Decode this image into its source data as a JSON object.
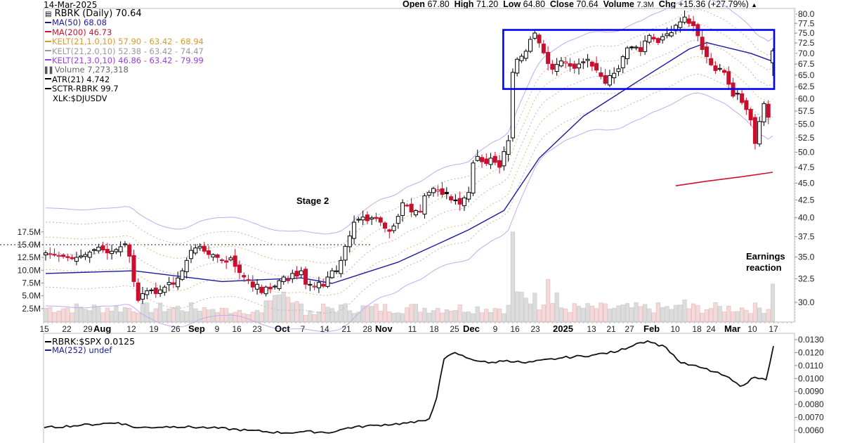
{
  "header": {
    "date": "14-Mar-2025",
    "open_label": "Open",
    "open": "67.80",
    "high_label": "High",
    "high": "71.20",
    "low_label": "Low",
    "low": "64.80",
    "close_label": "Close",
    "close": "70.64",
    "volume_label": "Volume",
    "volume": "7.3M",
    "chg_label": "Chg",
    "chg": "+15.36 (+27.79%)",
    "chg_icon": "up-triangle-icon"
  },
  "legend": {
    "title": "RBRK (Daily) 70.64",
    "items": [
      {
        "label": "MA(50) 68.08",
        "color": "#1a1aa0"
      },
      {
        "label": "MA(200) 46.73",
        "color": "#d0102e"
      },
      {
        "label": "KELT(21,1.0,10) 57.90 - 63.42 - 68.94",
        "color": "#d99a2b"
      },
      {
        "label": "KELT(21,2.0,10) 52.38 - 63.42 - 74.47",
        "color": "#999999"
      },
      {
        "label": "KELT(21,3.0,10) 46.86 - 63.42 - 79.99",
        "color": "#9b40e0"
      },
      {
        "label": "Volume 7,273,318",
        "color": "#777777",
        "icon": "volume-bars-icon"
      },
      {
        "label": "ATR(21) 4.742",
        "color": "#000000"
      },
      {
        "label": "SCTR-RBRK 99.7",
        "color": "#000000"
      },
      {
        "label": "XLK:$DJUSDV",
        "color": "#000000",
        "no_swatch": true
      }
    ]
  },
  "lower_legend": {
    "items": [
      {
        "label": "RBRK:$SPX 0.0125",
        "color": "#000000"
      },
      {
        "label": "MA(252) undef",
        "color": "#1a1aa0"
      }
    ]
  },
  "annotations": {
    "stage2": "Stage 2",
    "earnings_line1": "Earnings",
    "earnings_line2": "reaction"
  },
  "chart_data": [
    {
      "type": "candlestick",
      "title": "RBRK (Daily) 70.64",
      "scale": "log",
      "ylim": [
        28.5,
        81
      ],
      "y_ticks": [
        80.0,
        77.5,
        75.0,
        72.5,
        70.0,
        67.5,
        65.0,
        62.5,
        60.0,
        57.5,
        55.0,
        52.5,
        50.0,
        47.5,
        45.0,
        42.5,
        40.0,
        37.5,
        35.0,
        32.5,
        30.0
      ],
      "x_tick_labels": [
        "15",
        "22",
        "29",
        "Aug",
        "12",
        "19",
        "26",
        "Sep",
        "9",
        "16",
        "23",
        "Oct",
        "7",
        "14",
        "21",
        "28",
        "Nov",
        "11",
        "18",
        "25",
        "Dec",
        "9",
        "16",
        "23",
        "2025",
        "13",
        "21",
        "27",
        "Feb",
        "10",
        "18",
        "24",
        "Mar",
        "10",
        "17"
      ],
      "x_major_labels": [
        "Aug",
        "Sep",
        "Oct",
        "Nov",
        "Dec",
        "2025",
        "Feb",
        "Mar"
      ],
      "volume_axis_ticks": [
        "17.5M",
        "15.0M",
        "12.5M",
        "10.0M",
        "7.5M",
        "5.0M",
        "2.5M"
      ],
      "volume_reference_line": "15.0M (dotted)",
      "consolidation_box": {
        "top": 75.8,
        "bottom": 62.0,
        "from": "Dec 6",
        "to": "Mar 17",
        "color": "#0000ff"
      },
      "close_path": [
        [
          0,
          35.5
        ],
        [
          3,
          35.2
        ],
        [
          6,
          34.8
        ],
        [
          9,
          35.3
        ],
        [
          12,
          36.2
        ],
        [
          14,
          35.5
        ],
        [
          16,
          35.9
        ],
        [
          18,
          36.6
        ],
        [
          19,
          35.1
        ],
        [
          20,
          32.2
        ],
        [
          21,
          30.2
        ],
        [
          22,
          30.9
        ],
        [
          23,
          31.2
        ],
        [
          24,
          31.3
        ],
        [
          25,
          30.9
        ],
        [
          26,
          31.3
        ],
        [
          27,
          31.6
        ],
        [
          28,
          32.1
        ],
        [
          29,
          31.9
        ],
        [
          30,
          32.6
        ],
        [
          31,
          33.4
        ],
        [
          32,
          34.6
        ],
        [
          33,
          35.8
        ],
        [
          34,
          36.1
        ],
        [
          35,
          36.3
        ],
        [
          36,
          35.7
        ],
        [
          37,
          35.3
        ],
        [
          38,
          35.3
        ],
        [
          40,
          34.6
        ],
        [
          41,
          34.4
        ],
        [
          42,
          34.9
        ],
        [
          43,
          33.9
        ],
        [
          44,
          33.2
        ],
        [
          45,
          32.7
        ],
        [
          46,
          32.3
        ],
        [
          47,
          31.6
        ],
        [
          48,
          31.9
        ],
        [
          49,
          31.0
        ],
        [
          50,
          31.6
        ],
        [
          51,
          31.4
        ],
        [
          52,
          31.7
        ],
        [
          53,
          32.3
        ],
        [
          54,
          32.7
        ],
        [
          55,
          32.3
        ],
        [
          56,
          33.1
        ],
        [
          57,
          32.8
        ],
        [
          58,
          33.4
        ],
        [
          59,
          31.9
        ],
        [
          60,
          31.9
        ],
        [
          61,
          31.7
        ],
        [
          62,
          32.1
        ],
        [
          63,
          31.7
        ],
        [
          64,
          32.7
        ],
        [
          65,
          33.4
        ],
        [
          66,
          33.4
        ],
        [
          67,
          34.6
        ],
        [
          68,
          36.3
        ],
        [
          69,
          37.6
        ],
        [
          70,
          39.4
        ],
        [
          71,
          39.8
        ],
        [
          72,
          40.1
        ],
        [
          73,
          39.6
        ],
        [
          74,
          40.0
        ],
        [
          75,
          39.9
        ],
        [
          76,
          39.4
        ],
        [
          77,
          38.6
        ],
        [
          78,
          38.2
        ],
        [
          79,
          38.9
        ],
        [
          80,
          40.2
        ],
        [
          81,
          42.1
        ],
        [
          82,
          41.7
        ],
        [
          83,
          40.8
        ],
        [
          84,
          41.0
        ],
        [
          85,
          40.9
        ],
        [
          86,
          43.1
        ],
        [
          87,
          43.6
        ],
        [
          88,
          44.2
        ],
        [
          89,
          44.0
        ],
        [
          90,
          43.3
        ],
        [
          91,
          43.4
        ],
        [
          92,
          42.5
        ],
        [
          93,
          42.5
        ],
        [
          94,
          41.9
        ],
        [
          95,
          42.8
        ],
        [
          96,
          43.6
        ],
        [
          97,
          48.2
        ],
        [
          98,
          49.3
        ],
        [
          99,
          48.4
        ],
        [
          100,
          48.1
        ],
        [
          101,
          49.0
        ],
        [
          102,
          48.3
        ],
        [
          103,
          47.5
        ],
        [
          104,
          50.1
        ],
        [
          105,
          52.0
        ],
        [
          106,
          65.6
        ],
        [
          107,
          68.6
        ],
        [
          108,
          69.3
        ],
        [
          109,
          70.5
        ],
        [
          110,
          73.4
        ],
        [
          111,
          75.0
        ],
        [
          112,
          72.5
        ],
        [
          113,
          70.1
        ],
        [
          114,
          67.6
        ],
        [
          115,
          66.3
        ],
        [
          116,
          67.4
        ],
        [
          117,
          68.2
        ],
        [
          118,
          68.0
        ],
        [
          119,
          67.0
        ],
        [
          120,
          66.5
        ],
        [
          121,
          67.5
        ],
        [
          122,
          68.0
        ],
        [
          123,
          68.6
        ],
        [
          124,
          67.0
        ],
        [
          125,
          66.1
        ],
        [
          126,
          64.7
        ],
        [
          127,
          63.2
        ],
        [
          128,
          64.9
        ],
        [
          129,
          65.4
        ],
        [
          130,
          66.4
        ],
        [
          131,
          69.2
        ],
        [
          132,
          71.3
        ],
        [
          133,
          71.3
        ],
        [
          134,
          71.5
        ],
        [
          135,
          70.4
        ],
        [
          136,
          73.0
        ],
        [
          137,
          74.4
        ],
        [
          138,
          73.5
        ],
        [
          139,
          72.6
        ],
        [
          140,
          74.1
        ],
        [
          141,
          74.8
        ],
        [
          142,
          75.1
        ],
        [
          143,
          77.0
        ],
        [
          144,
          77.9
        ],
        [
          145,
          79.2
        ],
        [
          146,
          77.5
        ],
        [
          147,
          76.9
        ],
        [
          148,
          74.3
        ],
        [
          149,
          70.9
        ],
        [
          150,
          69.2
        ],
        [
          151,
          67.3
        ],
        [
          152,
          66.0
        ],
        [
          153,
          66.5
        ],
        [
          154,
          65.6
        ],
        [
          155,
          63.0
        ],
        [
          156,
          60.5
        ],
        [
          157,
          61.1
        ],
        [
          158,
          59.2
        ],
        [
          159,
          57.8
        ],
        [
          160,
          55.8
        ],
        [
          161,
          51.5
        ],
        [
          162,
          55.5
        ],
        [
          163,
          59.0
        ],
        [
          164,
          56.3
        ],
        [
          165,
          70.6
        ]
      ],
      "ma50_approx": [
        [
          0,
          33.1
        ],
        [
          20,
          33.4
        ],
        [
          40,
          32.2
        ],
        [
          58,
          32.6
        ],
        [
          65,
          32.0
        ],
        [
          80,
          34.4
        ],
        [
          96,
          38.4
        ],
        [
          104,
          41.0
        ],
        [
          112,
          49.0
        ],
        [
          122,
          56.5
        ],
        [
          134,
          63.4
        ],
        [
          146,
          71.0
        ],
        [
          150,
          72.6
        ],
        [
          160,
          70.0
        ],
        [
          165,
          68.1
        ]
      ],
      "ma200_approx": [
        [
          143,
          44.6
        ],
        [
          150,
          45.3
        ],
        [
          158,
          46.0
        ],
        [
          165,
          46.7
        ]
      ],
      "notable_volume_bars": [
        {
          "date": "Dec 6",
          "volume_M": 17.5
        },
        {
          "date": "Mar 14",
          "volume_M": 7.3
        }
      ]
    },
    {
      "type": "line",
      "title": "RBRK:$SPX 0.0125",
      "series": [
        {
          "name": "RBRK:$SPX",
          "values_approx": [
            [
              0,
              0.0062
            ],
            [
              10,
              0.0064
            ],
            [
              20,
              0.0066
            ],
            [
              25,
              0.0062
            ],
            [
              35,
              0.0063
            ],
            [
              45,
              0.0062
            ],
            [
              55,
              0.006
            ],
            [
              65,
              0.0058
            ],
            [
              70,
              0.0059
            ],
            [
              78,
              0.00585
            ],
            [
              82,
              0.0062
            ],
            [
              90,
              0.0064
            ],
            [
              100,
              0.0066
            ],
            [
              104,
              0.0069
            ],
            [
              106,
              0.0085
            ],
            [
              108,
              0.0115
            ],
            [
              111,
              0.012
            ],
            [
              114,
              0.0116
            ],
            [
              120,
              0.0112
            ],
            [
              125,
              0.0114
            ],
            [
              130,
              0.0112
            ],
            [
              140,
              0.0116
            ],
            [
              148,
              0.0118
            ],
            [
              155,
              0.0121
            ],
            [
              160,
              0.0127
            ],
            [
              163,
              0.0129
            ],
            [
              168,
              0.0124
            ],
            [
              172,
              0.0112
            ],
            [
              178,
              0.0108
            ],
            [
              184,
              0.0102
            ],
            [
              188,
              0.0094
            ],
            [
              192,
              0.0101
            ],
            [
              195,
              0.0099
            ],
            [
              197,
              0.0125
            ]
          ]
        }
      ],
      "y_ticks": [
        0.013,
        0.012,
        0.011,
        0.01,
        0.009,
        0.008,
        0.007,
        0.006
      ],
      "ylim": [
        0.0055,
        0.0132
      ]
    }
  ]
}
